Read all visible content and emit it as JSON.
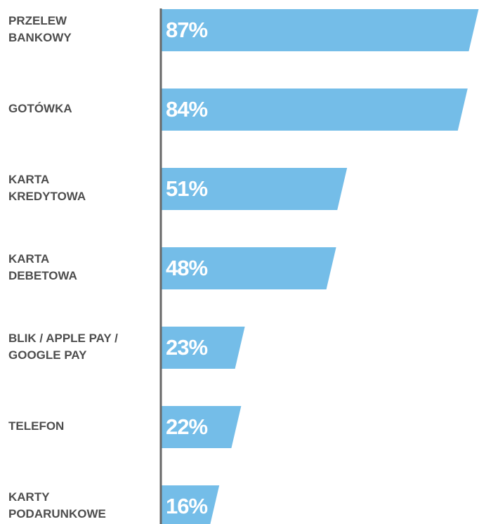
{
  "chart_data": {
    "type": "bar",
    "orientation": "horizontal",
    "categories": [
      [
        "PRZELEW",
        "BANKOWY"
      ],
      [
        "GOTÓWKA"
      ],
      [
        "KARTA",
        "KREDYTOWA"
      ],
      [
        "KARTA",
        "DEBETOWA"
      ],
      [
        "BLIK / APPLE PAY /",
        "GOOGLE PAY"
      ],
      [
        "TELEFON"
      ],
      [
        "KARTY",
        "PODARUNKOWE"
      ]
    ],
    "values": [
      87,
      84,
      51,
      48,
      23,
      22,
      16
    ],
    "value_labels": [
      "87%",
      "84%",
      "51%",
      "48%",
      "23%",
      "22%",
      "16%"
    ],
    "color": "#74bde8"
  }
}
